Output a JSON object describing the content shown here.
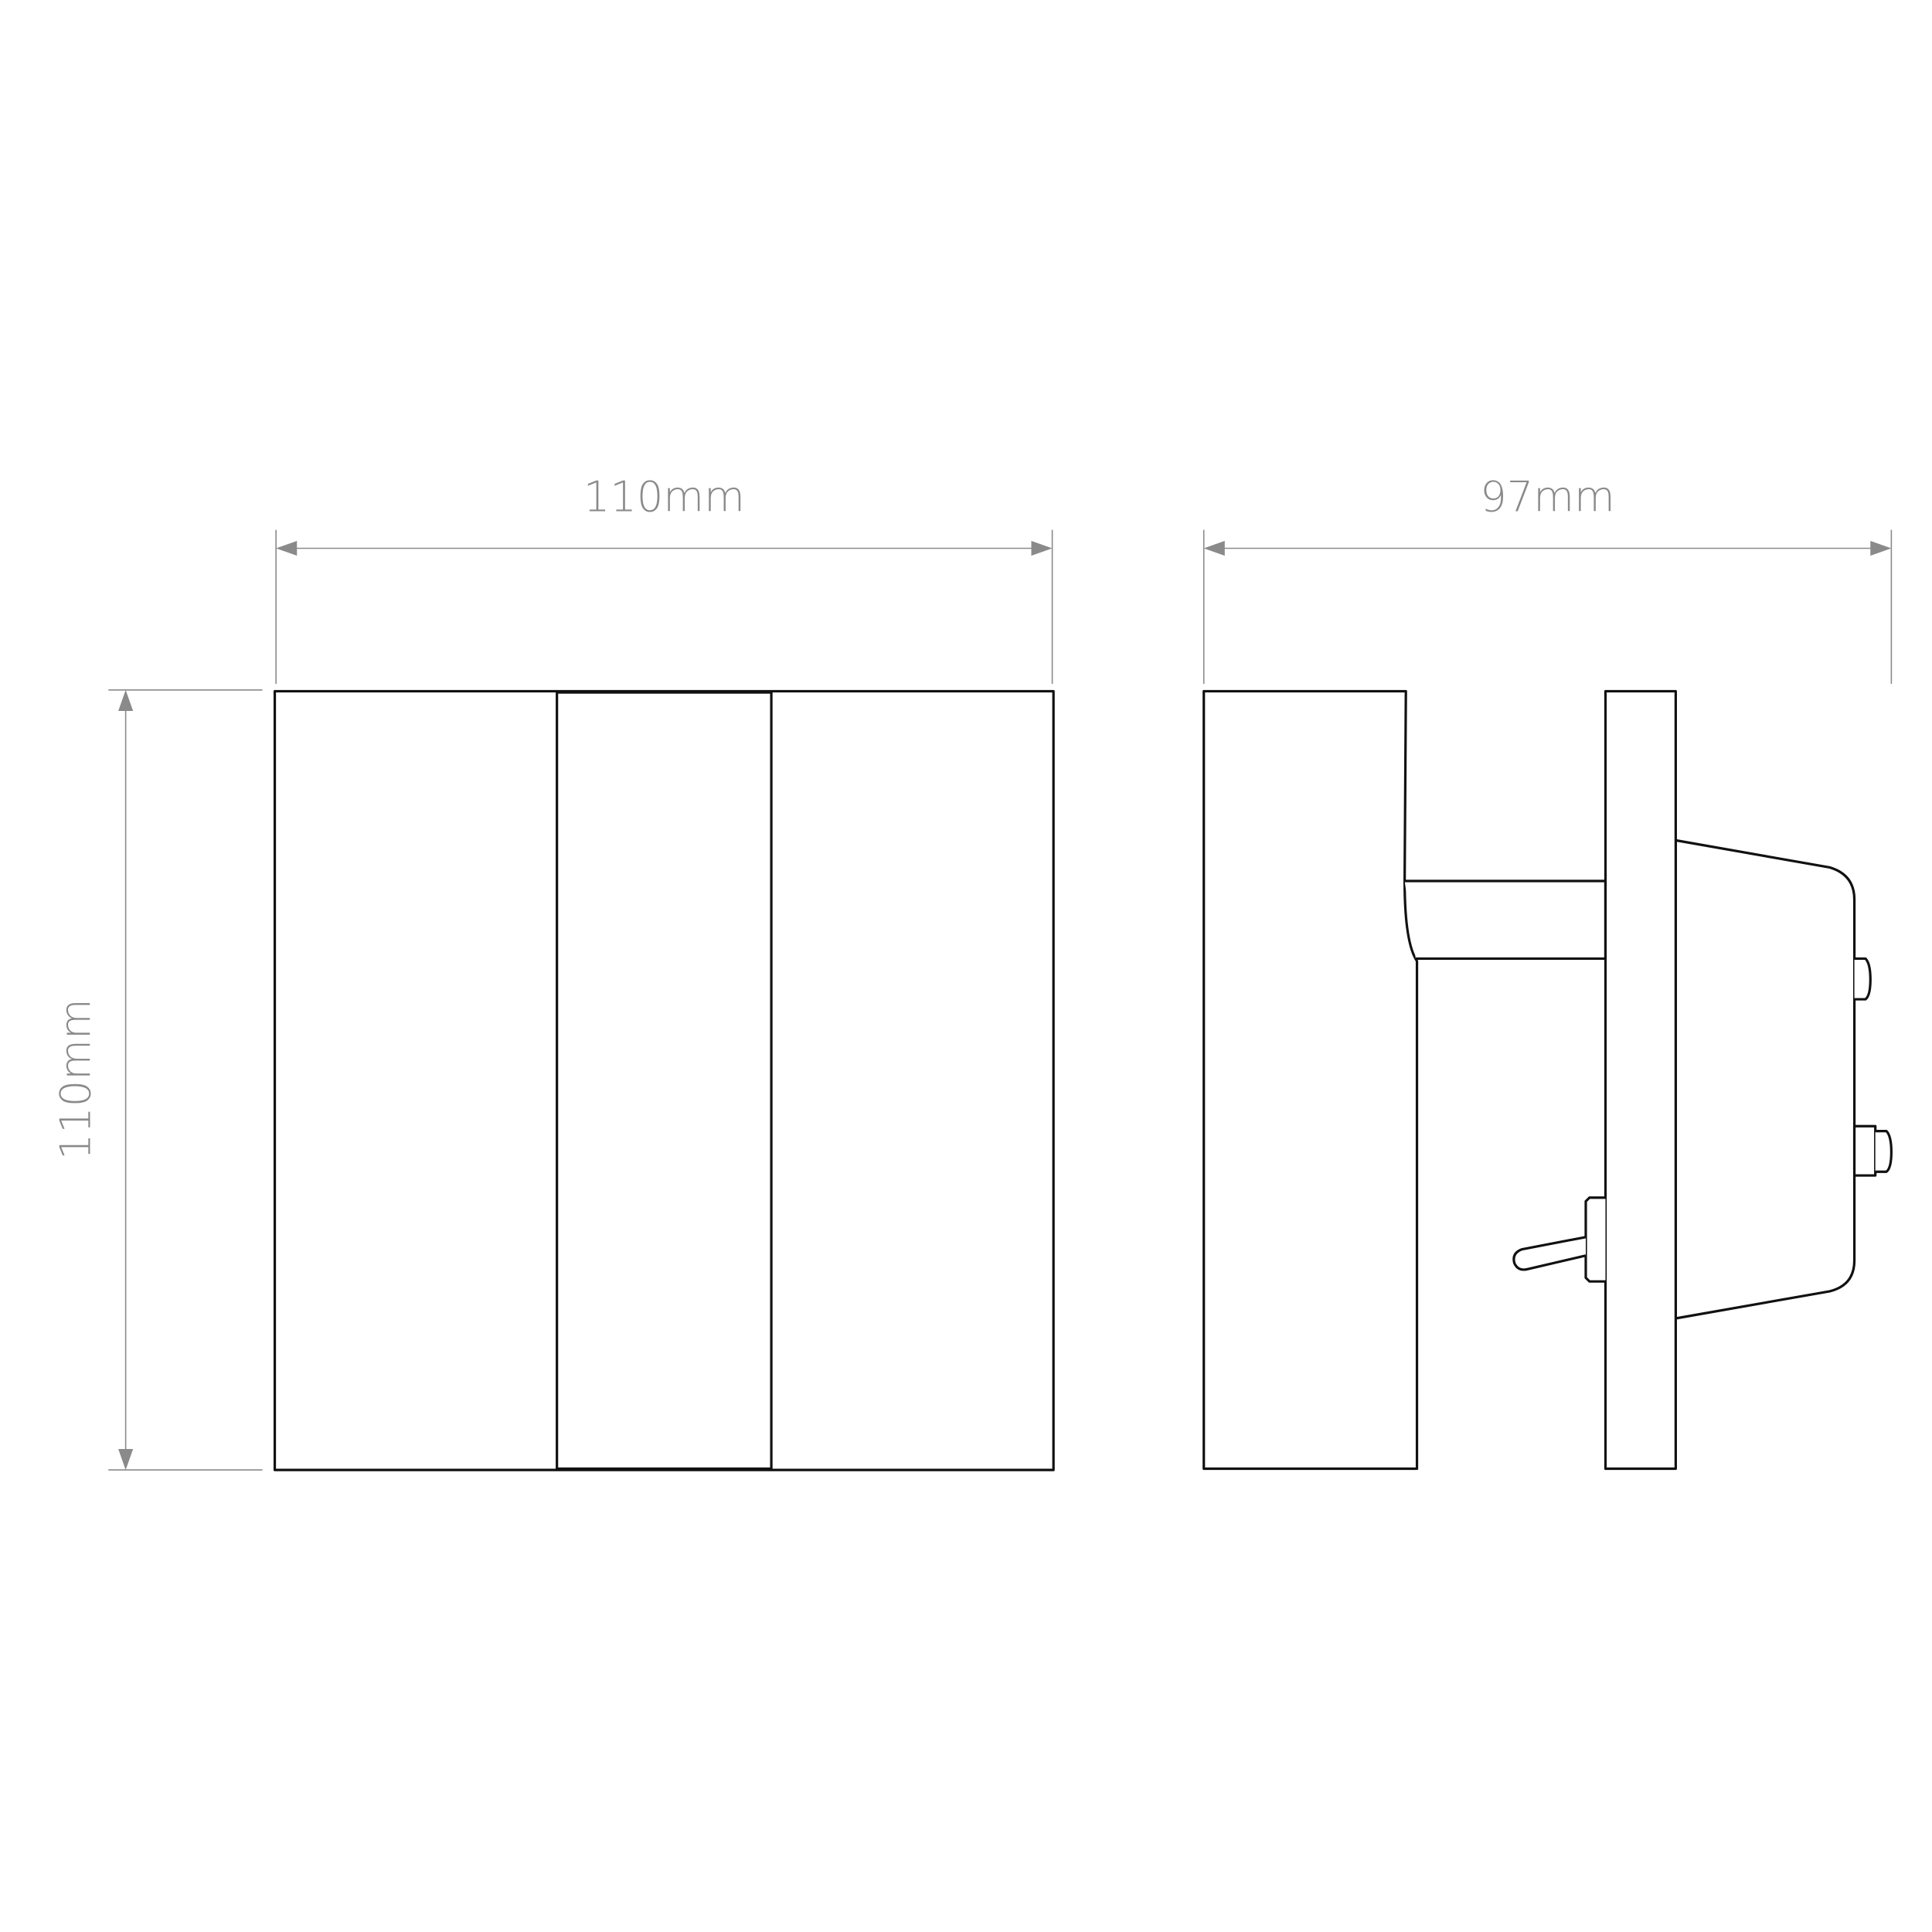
{
  "dimensions": {
    "front_width": "110mm",
    "front_height": "110mm",
    "side_depth": "97mm"
  },
  "colors": {
    "dimension_lines": "#8a8a8a",
    "outline": "#111111",
    "background": "#ffffff"
  }
}
